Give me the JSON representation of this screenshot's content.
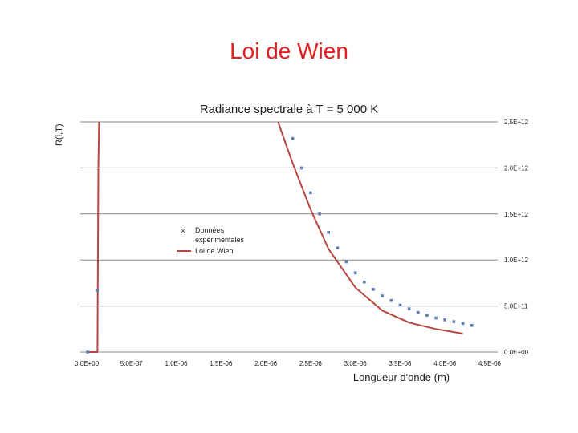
{
  "slide": {
    "title": "Loi de Wien"
  },
  "chart_data": {
    "type": "scatter",
    "title": "Radiance spectrale à T = 5 000 K",
    "xlabel": "Longueur d'onde (m)",
    "ylabel": "R(l,T)",
    "xlim": [
      0,
      4.5e-06
    ],
    "ylim": [
      0,
      2500000000000.0
    ],
    "x_ticks": [
      0,
      5e-07,
      1e-06,
      1.5e-06,
      2e-06,
      2.5e-06,
      3e-06,
      3.5e-06,
      4e-06,
      4.5e-06
    ],
    "x_tick_labels": [
      "0.0E+00",
      "5.0E-07",
      "1.0E-06",
      "1.5E-06",
      "2.0E-06",
      "2.5E-06",
      "3.0E-06",
      "3.5E-06",
      "4.0E-06",
      "4.5E-06"
    ],
    "y_ticks": [
      0,
      500000000000.0,
      1000000000000.0,
      1500000000000.0,
      2000000000000.0,
      2500000000000.0
    ],
    "y_tick_labels": [
      "0.0E+00",
      "5.0E+11",
      "1.0E+12",
      "1.5E+12",
      "2.0E+12",
      "2.5E+12"
    ],
    "grid": "horizontal",
    "legend": "center-left",
    "series": [
      {
        "name": "Données expérimentales",
        "kind": "scatter",
        "color": "#5a7fb0",
        "x": [
          1e-08,
          1.2e-07,
          2.3e-06,
          2.4e-06,
          2.5e-06,
          2.6e-06,
          2.7e-06,
          2.8e-06,
          2.9e-06,
          3e-06,
          3.1e-06,
          3.2e-06,
          3.3e-06,
          3.4e-06,
          3.5e-06,
          3.6e-06,
          3.7e-06,
          3.8e-06,
          3.9e-06,
          4e-06,
          4.1e-06,
          4.2e-06,
          4.3e-06
        ],
        "y": [
          0,
          670000000000.0,
          2320000000000.0,
          2000000000000.0,
          1730000000000.0,
          1500000000000.0,
          1300000000000.0,
          1130000000000.0,
          980000000000.0,
          860000000000.0,
          760000000000.0,
          680000000000.0,
          610000000000.0,
          560000000000.0,
          510000000000.0,
          470000000000.0,
          430000000000.0,
          400000000000.0,
          370000000000.0,
          350000000000.0,
          330000000000.0,
          310000000000.0,
          290000000000.0
        ]
      },
      {
        "name": "Loi de Wien",
        "kind": "line",
        "color": "#b5473f",
        "x": [
          1e-08,
          1.2e-07,
          1.3e-07,
          1.4e-07,
          2.1e-06,
          2.3e-06,
          2.5e-06,
          2.7e-06,
          3e-06,
          3.3e-06,
          3.6e-06,
          3.9e-06,
          4.2e-06
        ],
        "y": [
          0,
          0,
          2000000000000.0,
          2600000000000.0,
          2600000000000.0,
          2050000000000.0,
          1550000000000.0,
          1120000000000.0,
          700000000000.0,
          450000000000.0,
          320000000000.0,
          250000000000.0,
          200000000000.0
        ]
      }
    ]
  }
}
